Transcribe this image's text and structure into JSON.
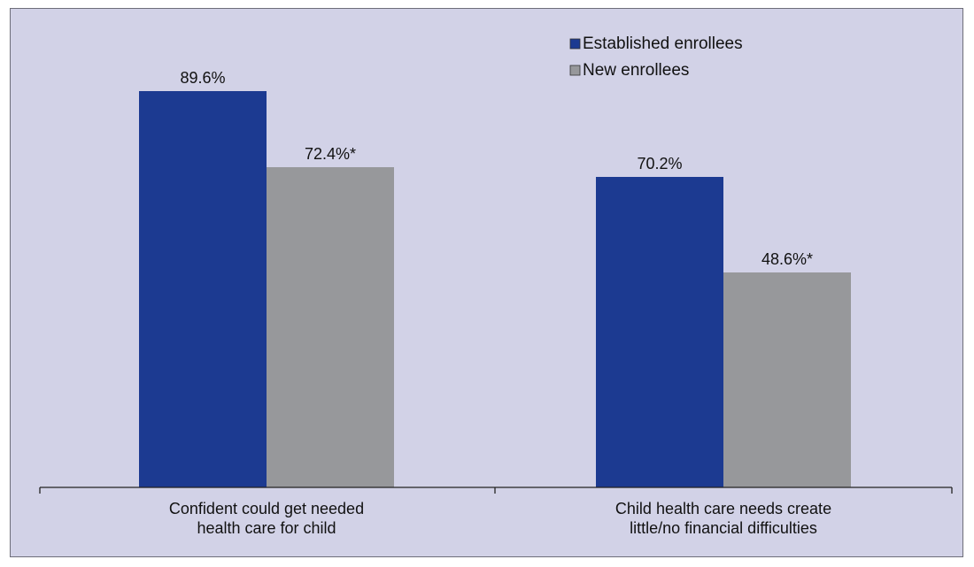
{
  "chart_data": {
    "type": "bar",
    "title": "",
    "xlabel": "",
    "ylabel": "",
    "ylim": [
      0,
      100
    ],
    "grid": false,
    "legend_position": "top-right",
    "categories": [
      [
        "Confident could get needed",
        "health care for child"
      ],
      [
        "Child health care needs create",
        "little/no financial difficulties"
      ]
    ],
    "series": [
      {
        "name": "Established enrollees",
        "color": "#1c3a91",
        "values": [
          89.6,
          70.2
        ],
        "labels": [
          "89.6%",
          "70.2%"
        ]
      },
      {
        "name": "New enrollees",
        "color": "#97989b",
        "values": [
          72.4,
          48.6
        ],
        "labels": [
          "72.4%*",
          "48.6%*"
        ]
      }
    ]
  }
}
